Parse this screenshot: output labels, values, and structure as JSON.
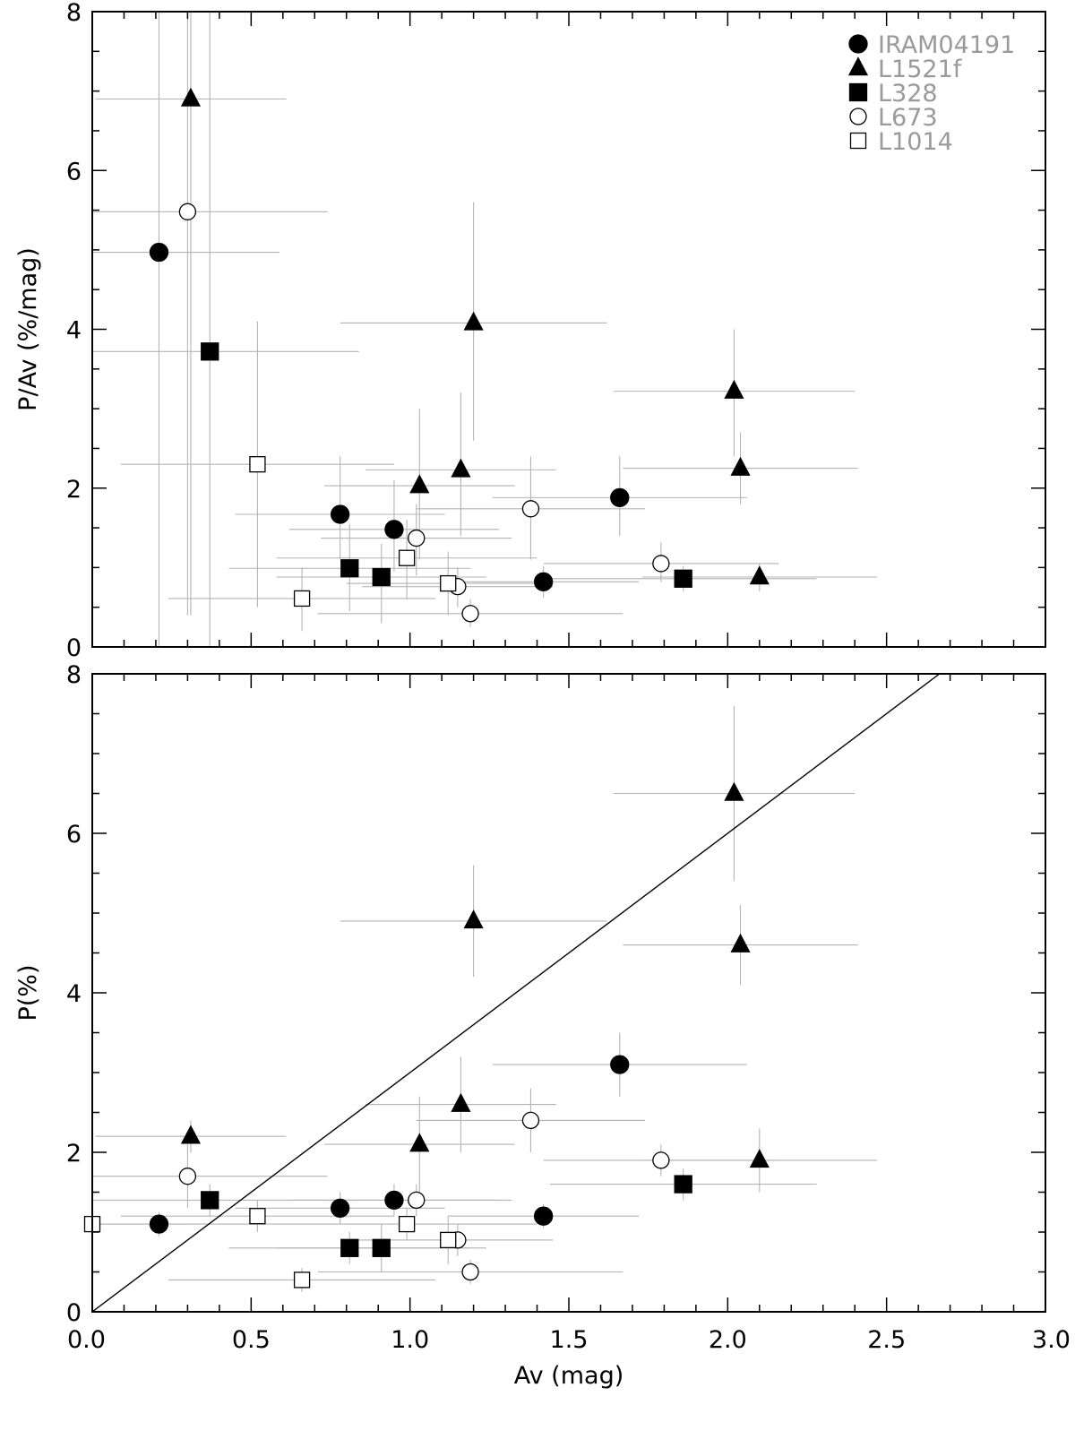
{
  "chart_data": [
    {
      "type": "scatter",
      "ylabel": "P/Av (%/mag)",
      "xlim": [
        0,
        3
      ],
      "ylim": [
        0,
        8
      ],
      "xticks": [
        0.0,
        0.5,
        1.0,
        1.5,
        2.0,
        2.5,
        3.0
      ],
      "yticks": [
        0,
        2,
        4,
        6,
        8
      ],
      "grid": false,
      "legend_position": "top-right",
      "series": [
        {
          "name": "IRAM04191",
          "marker": "circle",
          "filled": true,
          "points": [
            {
              "x": 0.21,
              "y": 4.97,
              "xerr": 0.38,
              "ylo": 0.0,
              "yhi": 8.0
            },
            {
              "x": 0.78,
              "y": 1.67,
              "xerr": 0.33,
              "ylo": 1.1,
              "yhi": 2.4
            },
            {
              "x": 0.95,
              "y": 1.48,
              "xerr": 0.33,
              "ylo": 0.95,
              "yhi": 2.1
            },
            {
              "x": 1.42,
              "y": 0.82,
              "xerr": 0.3,
              "ylo": 0.62,
              "yhi": 1.02
            },
            {
              "x": 1.66,
              "y": 1.88,
              "xerr": 0.4,
              "ylo": 1.4,
              "yhi": 2.4
            }
          ]
        },
        {
          "name": "L1521f",
          "marker": "triangle",
          "filled": true,
          "points": [
            {
              "x": 0.31,
              "y": 6.9,
              "xerr": 0.3,
              "ylo": 0.4,
              "yhi": 8.0
            },
            {
              "x": 1.03,
              "y": 2.03,
              "xerr": 0.3,
              "ylo": 1.1,
              "yhi": 3.0
            },
            {
              "x": 1.16,
              "y": 2.23,
              "xerr": 0.3,
              "ylo": 1.4,
              "yhi": 3.2
            },
            {
              "x": 1.2,
              "y": 4.08,
              "xerr": 0.42,
              "ylo": 2.6,
              "yhi": 5.6
            },
            {
              "x": 2.02,
              "y": 3.22,
              "xerr": 0.38,
              "ylo": 2.4,
              "yhi": 4.0
            },
            {
              "x": 2.04,
              "y": 2.25,
              "xerr": 0.37,
              "ylo": 1.8,
              "yhi": 2.7
            },
            {
              "x": 2.1,
              "y": 0.88,
              "xerr": 0.37,
              "ylo": 0.7,
              "yhi": 1.05
            }
          ]
        },
        {
          "name": "L328",
          "marker": "square",
          "filled": true,
          "points": [
            {
              "x": 0.37,
              "y": 3.72,
              "xerr": 0.47,
              "ylo": 0.0,
              "yhi": 8.0
            },
            {
              "x": 0.81,
              "y": 0.99,
              "xerr": 0.38,
              "ylo": 0.45,
              "yhi": 1.55
            },
            {
              "x": 0.91,
              "y": 0.88,
              "xerr": 0.33,
              "ylo": 0.3,
              "yhi": 1.3
            },
            {
              "x": 1.86,
              "y": 0.86,
              "xerr": 0.42,
              "ylo": 0.7,
              "yhi": 1.02
            }
          ]
        },
        {
          "name": "L673",
          "marker": "circle",
          "filled": false,
          "points": [
            {
              "x": 0.3,
              "y": 5.48,
              "xerr": 0.44,
              "ylo": 0.4,
              "yhi": 8.0
            },
            {
              "x": 1.02,
              "y": 1.37,
              "xerr": 0.3,
              "ylo": 0.9,
              "yhi": 1.8
            },
            {
              "x": 1.15,
              "y": 0.76,
              "xerr": 0.3,
              "ylo": 0.5,
              "yhi": 1.0
            },
            {
              "x": 1.19,
              "y": 0.42,
              "xerr": 0.48,
              "ylo": 0.25,
              "yhi": 0.6
            },
            {
              "x": 1.38,
              "y": 1.74,
              "xerr": 0.36,
              "ylo": 1.1,
              "yhi": 2.4
            },
            {
              "x": 1.79,
              "y": 1.05,
              "xerr": 0.37,
              "ylo": 0.82,
              "yhi": 1.32
            }
          ]
        },
        {
          "name": "L1014",
          "marker": "square",
          "filled": false,
          "points": [
            {
              "x": 0.52,
              "y": 2.3,
              "xerr": 0.43,
              "ylo": 0.5,
              "yhi": 4.1
            },
            {
              "x": 0.66,
              "y": 0.61,
              "xerr": 0.42,
              "ylo": 0.2,
              "yhi": 1.0
            },
            {
              "x": 0.99,
              "y": 1.12,
              "xerr": 0.41,
              "ylo": 0.6,
              "yhi": 1.6
            },
            {
              "x": 1.12,
              "y": 0.8,
              "xerr": 0.32,
              "ylo": 0.4,
              "yhi": 1.2
            }
          ]
        }
      ]
    },
    {
      "type": "scatter",
      "xlabel": "Av (mag)",
      "ylabel": "P(%)",
      "xlim": [
        0,
        3
      ],
      "ylim": [
        0,
        8
      ],
      "xticks": [
        0.0,
        0.5,
        1.0,
        1.5,
        2.0,
        2.5,
        3.0
      ],
      "yticks": [
        0,
        2,
        4,
        6,
        8
      ],
      "grid": false,
      "reference_line": {
        "slope": 3,
        "intercept": 0
      },
      "series": [
        {
          "name": "IRAM04191",
          "marker": "circle",
          "filled": true,
          "points": [
            {
              "x": 0.21,
              "y": 1.1,
              "xerr": 0.38,
              "ylo": 0.95,
              "yhi": 1.25
            },
            {
              "x": 0.78,
              "y": 1.3,
              "xerr": 0.33,
              "ylo": 1.1,
              "yhi": 1.5
            },
            {
              "x": 0.95,
              "y": 1.4,
              "xerr": 0.33,
              "ylo": 1.2,
              "yhi": 1.6
            },
            {
              "x": 1.42,
              "y": 1.2,
              "xerr": 0.3,
              "ylo": 1.05,
              "yhi": 1.35
            },
            {
              "x": 1.66,
              "y": 3.1,
              "xerr": 0.4,
              "ylo": 2.7,
              "yhi": 3.5
            }
          ]
        },
        {
          "name": "L1521f",
          "marker": "triangle",
          "filled": true,
          "points": [
            {
              "x": 0.31,
              "y": 2.2,
              "xerr": 0.3,
              "ylo": 2.0,
              "yhi": 2.4
            },
            {
              "x": 1.03,
              "y": 2.1,
              "xerr": 0.3,
              "ylo": 1.5,
              "yhi": 2.7
            },
            {
              "x": 1.16,
              "y": 2.6,
              "xerr": 0.3,
              "ylo": 2.0,
              "yhi": 3.2
            },
            {
              "x": 1.2,
              "y": 4.9,
              "xerr": 0.42,
              "ylo": 4.2,
              "yhi": 5.6
            },
            {
              "x": 2.02,
              "y": 6.5,
              "xerr": 0.38,
              "ylo": 5.4,
              "yhi": 7.6
            },
            {
              "x": 2.04,
              "y": 4.6,
              "xerr": 0.37,
              "ylo": 4.1,
              "yhi": 5.1
            },
            {
              "x": 2.1,
              "y": 1.9,
              "xerr": 0.37,
              "ylo": 1.5,
              "yhi": 2.3
            }
          ]
        },
        {
          "name": "L328",
          "marker": "square",
          "filled": true,
          "points": [
            {
              "x": 0.37,
              "y": 1.4,
              "xerr": 0.47,
              "ylo": 1.2,
              "yhi": 1.6
            },
            {
              "x": 0.81,
              "y": 0.8,
              "xerr": 0.38,
              "ylo": 0.6,
              "yhi": 1.0
            },
            {
              "x": 0.91,
              "y": 0.8,
              "xerr": 0.33,
              "ylo": 0.5,
              "yhi": 1.1
            },
            {
              "x": 1.86,
              "y": 1.6,
              "xerr": 0.42,
              "ylo": 1.4,
              "yhi": 1.8
            }
          ]
        },
        {
          "name": "L673",
          "marker": "circle",
          "filled": false,
          "points": [
            {
              "x": 0.3,
              "y": 1.7,
              "xerr": 0.44,
              "ylo": 1.3,
              "yhi": 2.1
            },
            {
              "x": 1.02,
              "y": 1.4,
              "xerr": 0.3,
              "ylo": 1.2,
              "yhi": 1.6
            },
            {
              "x": 1.15,
              "y": 0.9,
              "xerr": 0.3,
              "ylo": 0.7,
              "yhi": 1.1
            },
            {
              "x": 1.19,
              "y": 0.5,
              "xerr": 0.48,
              "ylo": 0.35,
              "yhi": 0.65
            },
            {
              "x": 1.38,
              "y": 2.4,
              "xerr": 0.36,
              "ylo": 2.0,
              "yhi": 2.8
            },
            {
              "x": 1.79,
              "y": 1.9,
              "xerr": 0.37,
              "ylo": 1.7,
              "yhi": 2.1
            }
          ]
        },
        {
          "name": "L1014",
          "marker": "square",
          "filled": false,
          "points": [
            {
              "x": 0.0,
              "y": 1.1,
              "xerr": 0.3,
              "ylo": 0.9,
              "yhi": 1.3
            },
            {
              "x": 0.52,
              "y": 1.2,
              "xerr": 0.43,
              "ylo": 1.0,
              "yhi": 1.4
            },
            {
              "x": 0.66,
              "y": 0.4,
              "xerr": 0.42,
              "ylo": 0.25,
              "yhi": 0.55
            },
            {
              "x": 0.99,
              "y": 1.1,
              "xerr": 0.41,
              "ylo": 0.9,
              "yhi": 1.3
            },
            {
              "x": 1.12,
              "y": 0.9,
              "xerr": 0.32,
              "ylo": 0.6,
              "yhi": 1.2
            }
          ]
        }
      ]
    }
  ]
}
